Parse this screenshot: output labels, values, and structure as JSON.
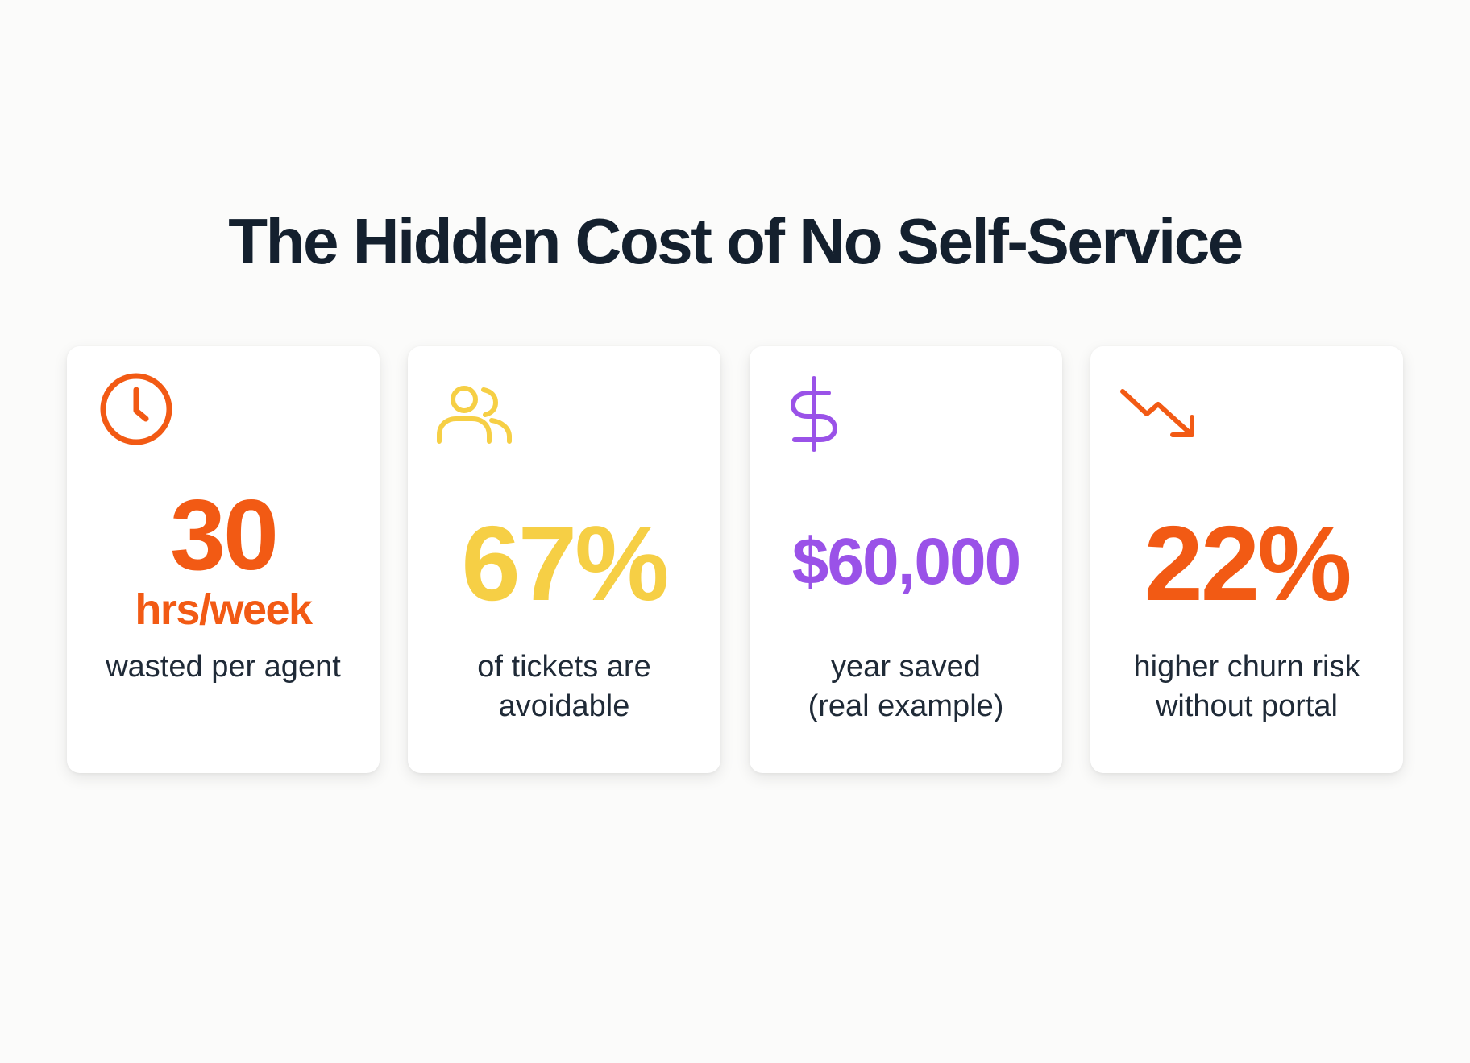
{
  "title": "The Hidden Cost of No Self-Service",
  "colors": {
    "title": "#14202e",
    "orange": "#f25a14",
    "yellow": "#f6cf45",
    "purple": "#9a52e8",
    "text": "#1f2a37"
  },
  "cards": [
    {
      "icon": "clock-icon",
      "value": "30",
      "unit": "hrs/week",
      "desc": [
        "wasted per agent"
      ],
      "color": "#f25a14"
    },
    {
      "icon": "users-icon",
      "value": "67%",
      "unit": "",
      "desc": [
        "of tickets are",
        "avoidable"
      ],
      "color": "#f6cf45"
    },
    {
      "icon": "dollar-icon",
      "value": "$60,000",
      "unit": "",
      "desc": [
        "year saved",
        "(real example)"
      ],
      "color": "#9a52e8"
    },
    {
      "icon": "trending-down-icon",
      "value": "22%",
      "unit": "",
      "desc": [
        "higher churn risk",
        "without portal"
      ],
      "color": "#f25a14"
    }
  ]
}
